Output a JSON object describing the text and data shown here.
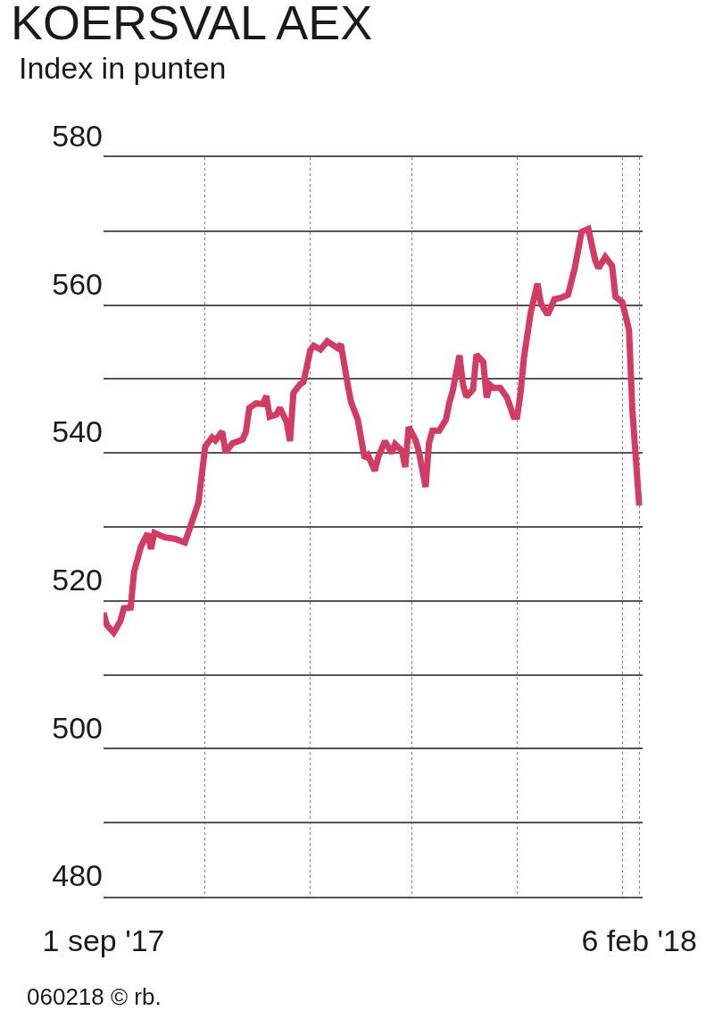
{
  "chart_data": {
    "type": "line",
    "title": "KOERSVAL AEX",
    "subtitle": "Index in punten",
    "annotations": [
      "060218 © rb."
    ],
    "x": [
      "2017-09-01",
      "2017-09-02",
      "2017-09-04",
      "2017-09-06",
      "2017-09-07",
      "2017-09-09",
      "2017-09-10",
      "2017-09-12",
      "2017-09-14",
      "2017-09-15",
      "2017-09-16",
      "2017-09-19",
      "2017-09-22",
      "2017-09-25",
      "2017-09-26",
      "2017-09-29",
      "2017-10-01",
      "2017-10-03",
      "2017-10-04",
      "2017-10-06",
      "2017-10-07",
      "2017-10-09",
      "2017-10-12",
      "2017-10-13",
      "2017-10-14",
      "2017-10-16",
      "2017-10-18",
      "2017-10-19",
      "2017-10-20",
      "2017-10-22",
      "2017-10-23",
      "2017-10-25",
      "2017-10-26",
      "2017-10-27",
      "2017-10-29",
      "2017-10-30",
      "2017-11-01",
      "2017-11-02",
      "2017-11-04",
      "2017-11-06",
      "2017-11-07",
      "2017-11-09",
      "2017-11-10",
      "2017-11-12",
      "2017-11-13",
      "2017-11-15",
      "2017-11-17",
      "2017-11-18",
      "2017-11-20",
      "2017-11-21",
      "2017-11-23",
      "2017-11-25",
      "2017-11-26",
      "2017-11-28",
      "2017-11-29",
      "2017-11-30",
      "2017-12-02",
      "2017-12-03",
      "2017-12-05",
      "2017-12-06",
      "2017-12-07",
      "2017-12-09",
      "2017-12-11",
      "2017-12-12",
      "2017-12-13",
      "2017-12-15",
      "2017-12-16",
      "2017-12-17",
      "2017-12-19",
      "2017-12-20",
      "2017-12-22",
      "2017-12-23",
      "2017-12-24",
      "2017-12-25",
      "2017-12-27",
      "2017-12-29",
      "2017-12-31",
      "2018-01-01",
      "2018-01-02",
      "2018-01-03",
      "2018-01-05",
      "2018-01-07",
      "2018-01-08",
      "2018-01-10",
      "2018-01-12",
      "2018-01-14",
      "2018-01-16",
      "2018-01-18",
      "2018-01-20",
      "2018-01-22",
      "2018-01-24",
      "2018-01-25",
      "2018-01-27",
      "2018-01-29",
      "2018-01-30",
      "2018-02-01",
      "2018-02-03",
      "2018-02-04",
      "2018-02-06"
    ],
    "series": [
      {
        "color": "#d23c64",
        "values": [
          518.4,
          516.7,
          515.7,
          517.3,
          519,
          519.1,
          523.9,
          527.3,
          529.1,
          527,
          529.2,
          528.6,
          528.4,
          527.9,
          529.2,
          533.3,
          540.9,
          542.1,
          541.7,
          542.9,
          540.1,
          541.3,
          541.8,
          542.9,
          546.1,
          546.7,
          546.6,
          547.7,
          544.9,
          545.2,
          546.1,
          544.2,
          541.6,
          548.1,
          549.3,
          549.6,
          553.9,
          554.5,
          554,
          555.1,
          554.8,
          554.2,
          554.7,
          549.3,
          546.9,
          544.5,
          539.3,
          539.7,
          537.6,
          539.4,
          541.6,
          540,
          541.2,
          540.3,
          538.1,
          543.5,
          541.8,
          540.2,
          535.4,
          541.3,
          543,
          543,
          544.5,
          546.8,
          548.4,
          553.2,
          549.3,
          547.6,
          548.6,
          553.3,
          552.3,
          547.5,
          549.2,
          548.8,
          548.8,
          547.5,
          544.9,
          544.9,
          548.1,
          552.9,
          559,
          562.9,
          560.2,
          558.7,
          560.8,
          561,
          561.4,
          565,
          569.9,
          570.3,
          566.1,
          565,
          566.5,
          565.3,
          561.1,
          560.4,
          556.6,
          545.7,
          532.9
        ]
      }
    ],
    "xlim": [
      "2017-09-01",
      "2018-02-07"
    ],
    "xticks": [
      {
        "value": "2017-09-01",
        "label": "1 sep '17"
      },
      {
        "value": "2017-10-01",
        "label": null
      },
      {
        "value": "2017-11-01",
        "label": null
      },
      {
        "value": "2017-12-01",
        "label": null
      },
      {
        "value": "2018-01-01",
        "label": null
      },
      {
        "value": "2018-02-01",
        "label": null
      },
      {
        "value": "2018-02-06",
        "label": "6 feb '18"
      }
    ],
    "ylim": [
      480,
      580
    ],
    "yticks": [
      {
        "value": 480,
        "label": "480"
      },
      {
        "value": 490,
        "label": null
      },
      {
        "value": 500,
        "label": "500"
      },
      {
        "value": 510,
        "label": null
      },
      {
        "value": 520,
        "label": "520"
      },
      {
        "value": 530,
        "label": null
      },
      {
        "value": 540,
        "label": "540"
      },
      {
        "value": 550,
        "label": null
      },
      {
        "value": 560,
        "label": "560"
      },
      {
        "value": 570,
        "label": null
      },
      {
        "value": 580,
        "label": "580"
      }
    ],
    "grid": true,
    "marker": "none",
    "line_style": "solid"
  }
}
